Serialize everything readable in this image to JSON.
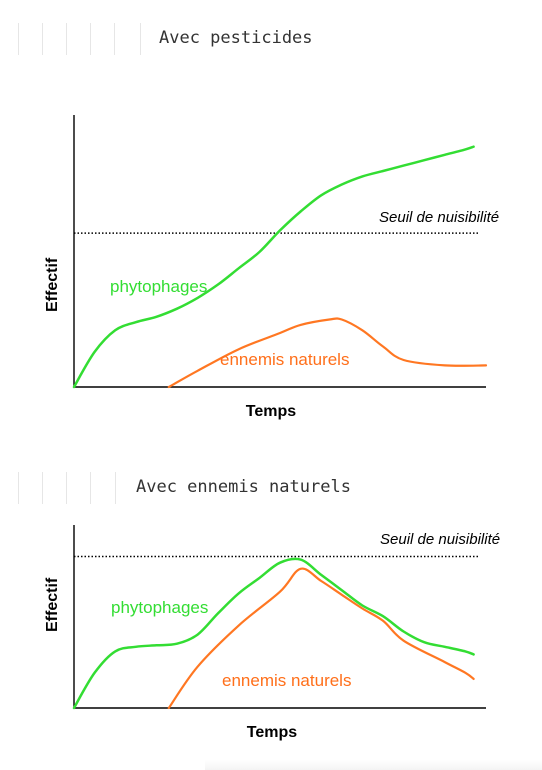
{
  "sections": [
    {
      "title": "Avec pesticides"
    },
    {
      "title": "Avec ennemis naturels"
    }
  ],
  "colors": {
    "phytophages": "#33dd33",
    "ennemis": "#ff7722",
    "threshold": "#000000"
  },
  "chart_data": [
    {
      "type": "line",
      "title": "",
      "xlabel": "Temps",
      "ylabel": "Effectif",
      "xlim": [
        0,
        100
      ],
      "ylim": [
        0,
        100
      ],
      "threshold": {
        "label": "Seuil de nuisibilité",
        "value": 57
      },
      "series": [
        {
          "name": "phytophages",
          "x": [
            0,
            5,
            10,
            15,
            20,
            25,
            30,
            35,
            40,
            45,
            50,
            55,
            60,
            65,
            70,
            75,
            80,
            85,
            90,
            95,
            97
          ],
          "y": [
            0,
            13,
            21,
            24,
            26,
            29,
            33,
            38,
            44,
            50,
            58,
            65,
            71,
            75,
            78,
            80,
            82,
            84,
            86,
            88,
            89
          ]
        },
        {
          "name": "ennemis naturels",
          "x": [
            23,
            30,
            40,
            50,
            55,
            62,
            65,
            70,
            75,
            80,
            90,
            100
          ],
          "y": [
            0,
            6,
            14,
            20,
            23,
            25,
            25,
            21,
            15,
            10,
            8,
            8
          ]
        }
      ]
    },
    {
      "type": "line",
      "title": "",
      "xlabel": "Temps",
      "ylabel": "Effectif",
      "xlim": [
        0,
        100
      ],
      "ylim": [
        0,
        100
      ],
      "threshold": {
        "label": "Seuil de nuisibilité",
        "value": 99
      },
      "series": [
        {
          "name": "phytophages",
          "x": [
            0,
            5,
            10,
            15,
            20,
            25,
            30,
            35,
            40,
            45,
            50,
            55,
            60,
            65,
            70,
            75,
            80,
            85,
            90,
            95,
            97
          ],
          "y": [
            0,
            23,
            37,
            40,
            41,
            42,
            48,
            62,
            75,
            85,
            95,
            97,
            87,
            77,
            67,
            60,
            50,
            43,
            40,
            37,
            35
          ]
        },
        {
          "name": "ennemis naturels",
          "x": [
            23,
            30,
            40,
            50,
            55,
            60,
            65,
            70,
            75,
            80,
            90,
            95,
            97
          ],
          "y": [
            0,
            27,
            54,
            76,
            91,
            83,
            74,
            65,
            57,
            44,
            30,
            23,
            19
          ]
        }
      ]
    }
  ]
}
